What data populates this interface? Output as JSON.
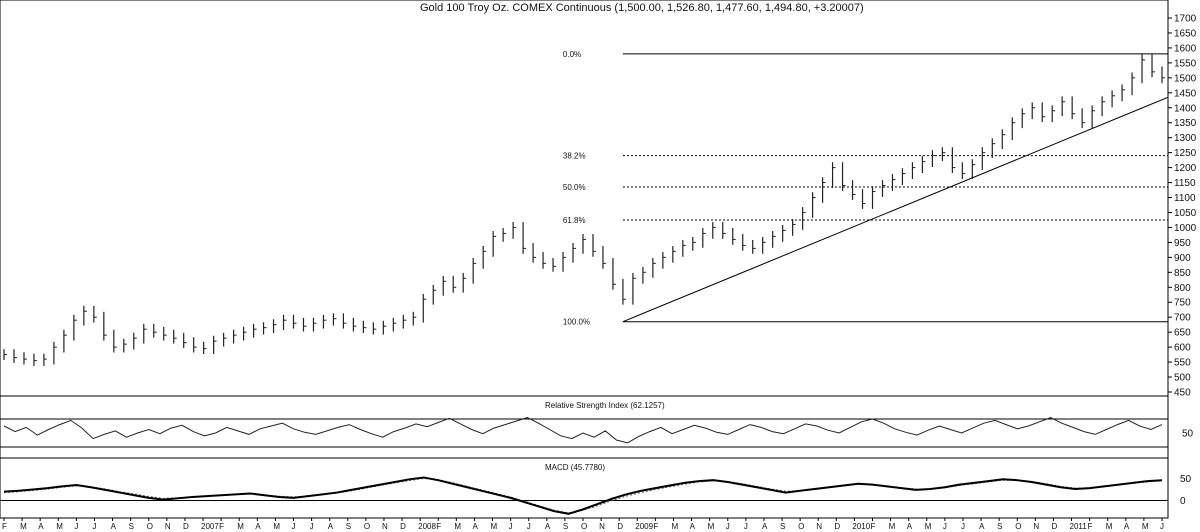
{
  "chart_data": [
    {
      "type": "ohlc",
      "panel": "price",
      "title": "Gold 100 Troy Oz. COMEX Continuous (1,500.00, 1,526.80, 1,477.60, 1,494.80, +3.20007)",
      "ylim": [
        450,
        1700
      ],
      "y_ticks": [
        450,
        500,
        550,
        600,
        650,
        700,
        750,
        800,
        850,
        900,
        950,
        1000,
        1050,
        1100,
        1150,
        1200,
        1250,
        1300,
        1350,
        1400,
        1450,
        1500,
        1550,
        1600,
        1650,
        1700
      ],
      "x_ticks": [
        "F",
        "M",
        "A",
        "M",
        "J",
        "J",
        "A",
        "S",
        "O",
        "N",
        "D",
        "2007",
        "F",
        "M",
        "A",
        "M",
        "J",
        "J",
        "A",
        "S",
        "O",
        "N",
        "D",
        "2008",
        "F",
        "M",
        "A",
        "M",
        "J",
        "J",
        "A",
        "S",
        "O",
        "N",
        "D",
        "2009",
        "F",
        "M",
        "A",
        "M",
        "J",
        "J",
        "A",
        "S",
        "O",
        "N",
        "D",
        "2010",
        "F",
        "M",
        "A",
        "M",
        "J",
        "J",
        "A",
        "S",
        "O",
        "N",
        "D",
        "2011",
        "F",
        "M",
        "A",
        "M",
        "J"
      ],
      "series_close": [
        575,
        565,
        560,
        555,
        560,
        600,
        640,
        690,
        720,
        700,
        640,
        600,
        610,
        630,
        660,
        650,
        640,
        630,
        615,
        600,
        595,
        620,
        630,
        640,
        650,
        660,
        665,
        675,
        690,
        680,
        670,
        680,
        690,
        695,
        680,
        670,
        665,
        660,
        670,
        680,
        690,
        700,
        760,
        790,
        820,
        800,
        830,
        880,
        920,
        970,
        980,
        1000,
        930,
        900,
        880,
        870,
        900,
        930,
        960,
        920,
        880,
        810,
        760,
        830,
        850,
        880,
        900,
        920,
        940,
        950,
        980,
        1000,
        980,
        960,
        940,
        930,
        950,
        970,
        990,
        1010,
        1050,
        1100,
        1150,
        1200,
        1140,
        1110,
        1080,
        1120,
        1140,
        1160,
        1180,
        1200,
        1220,
        1240,
        1250,
        1200,
        1180,
        1210,
        1250,
        1280,
        1310,
        1350,
        1380,
        1400,
        1370,
        1390,
        1420,
        1380,
        1350,
        1390,
        1420,
        1440,
        1460,
        1500,
        1560,
        1520,
        1500
      ],
      "fib_levels": [
        {
          "label": "0.0%",
          "value": 1580
        },
        {
          "label": "38.2%",
          "value": 1240
        },
        {
          "label": "50.0%",
          "value": 1135
        },
        {
          "label": "61.8%",
          "value": 1025
        },
        {
          "label": "100.0%",
          "value": 685
        }
      ],
      "trendline": {
        "from_value": 685,
        "to_value": 1435
      }
    },
    {
      "type": "line",
      "panel": "rsi",
      "title": "Relative Strength Index (62.1257)",
      "y_ticks": [
        50
      ],
      "reference_lines": [
        30,
        70
      ],
      "values": [
        60,
        52,
        58,
        47,
        55,
        62,
        68,
        57,
        42,
        48,
        53,
        44,
        50,
        55,
        49,
        57,
        61,
        52,
        46,
        50,
        58,
        53,
        48,
        56,
        60,
        64,
        56,
        51,
        48,
        53,
        58,
        62,
        55,
        49,
        44,
        52,
        57,
        63,
        59,
        65,
        71,
        63,
        55,
        49,
        57,
        62,
        67,
        72,
        64,
        55,
        46,
        42,
        50,
        44,
        53,
        40,
        36,
        45,
        52,
        58,
        49,
        55,
        61,
        57,
        51,
        48,
        55,
        62,
        58,
        52,
        49,
        56,
        63,
        60,
        54,
        50,
        58,
        66,
        70,
        64,
        56,
        51,
        47,
        54,
        60,
        55,
        50,
        57,
        64,
        68,
        62,
        56,
        60,
        66,
        72,
        64,
        58,
        52,
        48,
        55,
        62,
        68,
        60,
        55,
        62
      ]
    },
    {
      "type": "line",
      "panel": "macd",
      "title": "MACD (45.7780)",
      "y_ticks": [
        0,
        50
      ],
      "series": [
        {
          "values": [
            20,
            22,
            25,
            28,
            32,
            35,
            30,
            24,
            18,
            12,
            6,
            2,
            5,
            8,
            10,
            12,
            14,
            16,
            12,
            8,
            6,
            10,
            14,
            18,
            24,
            30,
            36,
            42,
            48,
            52,
            46,
            38,
            30,
            22,
            14,
            6,
            -4,
            -14,
            -24,
            -30,
            -20,
            -8,
            4,
            14,
            22,
            28,
            34,
            40,
            44,
            46,
            42,
            36,
            30,
            24,
            18,
            22,
            26,
            30,
            34,
            38,
            36,
            32,
            28,
            24,
            26,
            30,
            36,
            40,
            44,
            48,
            46,
            42,
            36,
            30,
            26,
            28,
            32,
            36,
            40,
            44,
            46
          ]
        },
        {
          "values": [
            18,
            20,
            23,
            26,
            30,
            33,
            31,
            26,
            20,
            15,
            9,
            5,
            6,
            8,
            10,
            12,
            14,
            15,
            13,
            10,
            8,
            10,
            13,
            17,
            22,
            28,
            34,
            40,
            45,
            50,
            47,
            40,
            32,
            24,
            16,
            8,
            -2,
            -12,
            -22,
            -28,
            -22,
            -12,
            0,
            10,
            18,
            25,
            31,
            37,
            42,
            45,
            43,
            38,
            32,
            26,
            21,
            22,
            25,
            29,
            33,
            37,
            36,
            33,
            29,
            26,
            26,
            29,
            34,
            38,
            42,
            46,
            46,
            43,
            38,
            32,
            28,
            28,
            31,
            35,
            39,
            42,
            45
          ]
        }
      ]
    }
  ]
}
